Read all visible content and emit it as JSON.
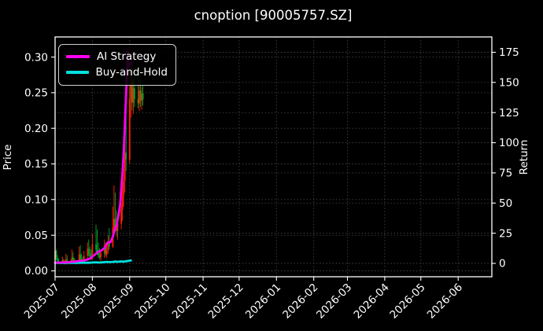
{
  "window": {
    "title": "cnoption [90005757.SZ]"
  },
  "chart_data": {
    "type": "candlestick_with_lines",
    "title": "cnoption [90005757.SZ]",
    "background_color": "#000000",
    "text_color": "#ffffff",
    "grid_color": "#424242",
    "spine_color": "#ffffff",
    "grid": true,
    "legend_position": "upper-left",
    "x_axis": {
      "tick_labels": [
        "2025-07",
        "2025-08",
        "2025-09",
        "2025-10",
        "2025-11",
        "2025-12",
        "2026-01",
        "2026-02",
        "2026-03",
        "2026-04",
        "2026-05",
        "2026-06"
      ],
      "tick_values": [
        0,
        31,
        62,
        92,
        123,
        153,
        184,
        215,
        243,
        274,
        304,
        335
      ],
      "domain": [
        0,
        363
      ],
      "label_rotation_deg": 45
    },
    "left_axis": {
      "label": "Price",
      "tick_labels": [
        "0.00",
        "0.05",
        "0.10",
        "0.15",
        "0.20",
        "0.25",
        "0.30"
      ],
      "tick_values": [
        0,
        0.05,
        0.1,
        0.15,
        0.2,
        0.25,
        0.3
      ],
      "domain": [
        -0.0083,
        0.3282
      ]
    },
    "right_axis": {
      "label": "Return",
      "tick_labels": [
        "0",
        "25",
        "50",
        "75",
        "100",
        "125",
        "150",
        "175"
      ],
      "tick_values": [
        0,
        25,
        50,
        75,
        100,
        125,
        150,
        175
      ],
      "domain": [
        -11.1,
        187.7
      ]
    },
    "candles": {
      "up_color": "#ff2000",
      "down_color": "#00a328",
      "columns": [
        "day_offset_from_2025-07-01",
        "open",
        "high",
        "low",
        "close"
      ],
      "rows": [
        [
          0,
          0.016,
          0.038,
          0.013,
          0.028
        ],
        [
          1,
          0.028,
          0.03,
          0.015,
          0.017
        ],
        [
          2,
          0.017,
          0.022,
          0.012,
          0.013
        ],
        [
          3,
          0.013,
          0.018,
          0.011,
          0.012
        ],
        [
          6,
          0.012,
          0.02,
          0.01,
          0.015
        ],
        [
          7,
          0.015,
          0.017,
          0.01,
          0.011
        ],
        [
          8,
          0.011,
          0.015,
          0.009,
          0.013
        ],
        [
          9,
          0.013,
          0.024,
          0.011,
          0.016
        ],
        [
          10,
          0.016,
          0.022,
          0.012,
          0.013
        ],
        [
          13,
          0.013,
          0.016,
          0.01,
          0.011
        ],
        [
          14,
          0.011,
          0.03,
          0.011,
          0.019
        ],
        [
          15,
          0.019,
          0.026,
          0.013,
          0.014
        ],
        [
          16,
          0.014,
          0.018,
          0.01,
          0.012
        ],
        [
          17,
          0.012,
          0.016,
          0.009,
          0.014
        ],
        [
          20,
          0.014,
          0.034,
          0.012,
          0.023
        ],
        [
          21,
          0.023,
          0.036,
          0.015,
          0.017
        ],
        [
          22,
          0.017,
          0.024,
          0.012,
          0.014
        ],
        [
          23,
          0.014,
          0.02,
          0.011,
          0.012
        ],
        [
          24,
          0.012,
          0.028,
          0.011,
          0.021
        ],
        [
          27,
          0.021,
          0.04,
          0.017,
          0.031
        ],
        [
          28,
          0.031,
          0.044,
          0.02,
          0.024
        ],
        [
          29,
          0.024,
          0.034,
          0.018,
          0.02
        ],
        [
          30,
          0.02,
          0.03,
          0.015,
          0.018
        ],
        [
          31,
          0.018,
          0.052,
          0.016,
          0.037
        ],
        [
          34,
          0.037,
          0.065,
          0.024,
          0.03
        ],
        [
          35,
          0.03,
          0.058,
          0.022,
          0.026
        ],
        [
          36,
          0.026,
          0.04,
          0.018,
          0.022
        ],
        [
          37,
          0.022,
          0.032,
          0.016,
          0.019
        ],
        [
          38,
          0.019,
          0.028,
          0.014,
          0.025
        ],
        [
          41,
          0.025,
          0.044,
          0.018,
          0.033
        ],
        [
          42,
          0.033,
          0.04,
          0.02,
          0.023
        ],
        [
          43,
          0.023,
          0.036,
          0.018,
          0.029
        ],
        [
          44,
          0.029,
          0.05,
          0.024,
          0.041
        ],
        [
          45,
          0.041,
          0.06,
          0.03,
          0.034
        ],
        [
          48,
          0.034,
          0.09,
          0.032,
          0.061
        ],
        [
          49,
          0.061,
          0.12,
          0.05,
          0.073
        ],
        [
          50,
          0.073,
          0.11,
          0.055,
          0.062
        ],
        [
          51,
          0.062,
          0.085,
          0.048,
          0.056
        ],
        [
          52,
          0.056,
          0.078,
          0.044,
          0.066
        ],
        [
          55,
          0.066,
          0.095,
          0.058,
          0.086
        ],
        [
          56,
          0.086,
          0.125,
          0.07,
          0.106
        ],
        [
          57,
          0.106,
          0.15,
          0.09,
          0.126
        ],
        [
          58,
          0.126,
          0.19,
          0.11,
          0.166
        ],
        [
          59,
          0.166,
          0.23,
          0.14,
          0.156
        ],
        [
          62,
          0.156,
          0.26,
          0.15,
          0.241
        ],
        [
          63,
          0.241,
          0.31,
          0.215,
          0.266
        ],
        [
          64,
          0.266,
          0.295,
          0.225,
          0.236
        ],
        [
          65,
          0.236,
          0.27,
          0.22,
          0.256
        ],
        [
          66,
          0.256,
          0.285,
          0.23,
          0.241
        ],
        [
          69,
          0.241,
          0.272,
          0.228,
          0.235
        ],
        [
          70,
          0.235,
          0.262,
          0.224,
          0.253
        ],
        [
          71,
          0.253,
          0.268,
          0.23,
          0.239
        ],
        [
          72,
          0.239,
          0.258,
          0.226,
          0.249
        ],
        [
          73,
          0.249,
          0.26,
          0.232,
          0.241
        ]
      ]
    },
    "series": [
      {
        "name": "AI Strategy",
        "color": "#ff00f0",
        "axis": "left",
        "line_width": 2.8,
        "points": [
          [
            0,
            0.0115
          ],
          [
            3,
            0.0116
          ],
          [
            6,
            0.0118
          ],
          [
            10,
            0.012
          ],
          [
            13,
            0.0125
          ],
          [
            17,
            0.013
          ],
          [
            20,
            0.014
          ],
          [
            24,
            0.0145
          ],
          [
            27,
            0.016
          ],
          [
            30,
            0.018
          ],
          [
            31,
            0.02
          ],
          [
            34,
            0.024
          ],
          [
            36,
            0.027
          ],
          [
            38,
            0.028
          ],
          [
            41,
            0.032
          ],
          [
            43,
            0.038
          ],
          [
            44,
            0.04
          ],
          [
            46,
            0.04
          ],
          [
            48,
            0.048
          ],
          [
            50,
            0.06
          ],
          [
            51,
            0.062
          ],
          [
            52,
            0.072
          ],
          [
            54,
            0.092
          ],
          [
            55,
            0.115
          ],
          [
            56,
            0.137
          ],
          [
            57,
            0.165
          ],
          [
            58,
            0.205
          ],
          [
            59,
            0.248
          ],
          [
            60,
            0.282
          ],
          [
            60.4,
            0.308
          ],
          [
            60.8,
            0.286
          ],
          [
            62,
            0.29
          ],
          [
            63,
            0.292
          ]
        ]
      },
      {
        "name": "Buy-and-Hold",
        "color": "#00e0e0",
        "axis": "left",
        "line_width": 2.8,
        "points": [
          [
            0,
            0.0112
          ],
          [
            6,
            0.011
          ],
          [
            10,
            0.0111
          ],
          [
            14,
            0.0113
          ],
          [
            20,
            0.0112
          ],
          [
            24,
            0.0115
          ],
          [
            28,
            0.0113
          ],
          [
            31,
            0.0117
          ],
          [
            34,
            0.012
          ],
          [
            36,
            0.0116
          ],
          [
            38,
            0.0118
          ],
          [
            41,
            0.0122
          ],
          [
            43,
            0.0126
          ],
          [
            45,
            0.0122
          ],
          [
            48,
            0.0125
          ],
          [
            50,
            0.013
          ],
          [
            52,
            0.0127
          ],
          [
            55,
            0.0132
          ],
          [
            57,
            0.0128
          ],
          [
            59,
            0.0135
          ],
          [
            61,
            0.014
          ],
          [
            63,
            0.0145
          ]
        ]
      }
    ]
  }
}
